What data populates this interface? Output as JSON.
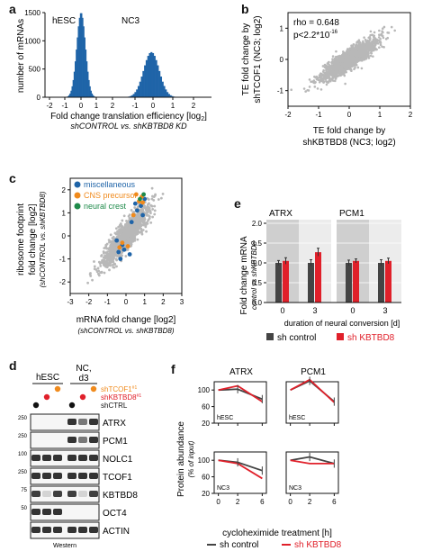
{
  "panels": {
    "a": {
      "label": "a",
      "chart_data": {
        "type": "histogram",
        "ylabel": "number of mRNAs",
        "xlabel_main": "Fold change translation efficiency [log",
        "xlabel_sub": "2",
        "xlabel_close": "]",
        "xlabel_italic": "shCONTROL vs. shKBTBD8 KD",
        "groups": [
          {
            "name": "hESC",
            "peak": 0.0,
            "max_count": 1500
          },
          {
            "name": "NC3",
            "peak": 0.0,
            "max_count": 800
          }
        ],
        "ytick_labels": [
          "0",
          "500",
          "1000",
          "1500"
        ],
        "xtick_labels": [
          "-2",
          "-1",
          "0",
          "1",
          "2",
          "-1",
          "0",
          "1",
          "2"
        ],
        "ylim": [
          0,
          1500
        ],
        "bar_color": "#1f64a8"
      }
    },
    "b": {
      "label": "b",
      "chart_data": {
        "type": "scatter",
        "annotation_rho": "rho = 0.648",
        "annotation_p": "p<2.2*10",
        "annotation_p_exp": "-16",
        "ylabel_lines": [
          "TE fold change by",
          "shTCOF1 (NC3; log2)"
        ],
        "xlabel_lines": [
          "TE fold change by",
          "shKBTBD8 (NC3; log2)"
        ],
        "xtick_labels": [
          "-2",
          "-1",
          "0",
          "1",
          "2"
        ],
        "ytick_labels": [
          "-1",
          "0",
          "1"
        ],
        "xlim": [
          -2,
          2
        ],
        "ylim": [
          -1.5,
          1.5
        ],
        "point_color": "#b8b8b8"
      }
    },
    "c": {
      "label": "c",
      "chart_data": {
        "type": "scatter",
        "legend": [
          {
            "name": "miscellaneous",
            "color": "#1f64a8"
          },
          {
            "name": "CNS precursor",
            "color": "#f08a1c"
          },
          {
            "name": "neural crest",
            "color": "#1e8a4a"
          }
        ],
        "ylabel_lines": [
          "ribosome footprint",
          "fold change [log2]",
          "(shCONTROL vs. shKBTBD8)"
        ],
        "xlabel_main": "mRNA fold change [log2]",
        "xlabel_italic": "(shCONTROL vs. shKBTBD8)",
        "xtick_labels": [
          "-3",
          "-2",
          "-1",
          "0",
          "1",
          "2",
          "3"
        ],
        "ytick_labels": [
          "-2",
          "-1",
          "0",
          "1",
          "2"
        ],
        "xlim": [
          -3,
          3
        ],
        "ylim": [
          -2.5,
          2.5
        ],
        "point_color": "#b8b8b8"
      }
    },
    "d": {
      "label": "d",
      "col_groups": [
        "hESC",
        "NC,",
        "d3"
      ],
      "legend_rows": [
        {
          "text": "shTCOF1",
          "sup": "#1",
          "color": "#f08a1c"
        },
        {
          "text": "shKBTBD8",
          "sup": "#1",
          "color": "#e0202a"
        },
        {
          "text": "shCTRL",
          "sup": "",
          "color": "#111111"
        }
      ],
      "blots": [
        {
          "name": "ATRX",
          "mw": "250"
        },
        {
          "name": "PCM1",
          "mw": "250"
        },
        {
          "name": "NOLC1",
          "mw": "100"
        },
        {
          "name": "TCOF1",
          "mw": "250"
        },
        {
          "name": "KBTBD8",
          "mw": "75"
        },
        {
          "name": "OCT4",
          "mw": "50"
        },
        {
          "name": "ACTIN",
          "mw": ""
        }
      ],
      "footer": "Western"
    },
    "e": {
      "label": "e",
      "chart_data": {
        "type": "bar",
        "groups": [
          "ATRX",
          "PCM1"
        ],
        "categories": [
          "0",
          "3"
        ],
        "series": [
          {
            "name": "sh control",
            "color": "#444444",
            "values": [
              [
                1.0,
                1.0
              ],
              [
                1.0,
                1.0
              ]
            ]
          },
          {
            "name": "sh KBTBD8",
            "color": "#e0202a",
            "values": [
              [
                1.05,
                1.27
              ],
              [
                1.05,
                1.05
              ]
            ]
          }
        ],
        "ylabel_main": "Fold change mRNA",
        "ylabel_italic": "control vs shKBTBD8",
        "xlabel": "duration of neural conversion [d]",
        "ytick_labels": [
          "0.0",
          "0.5",
          "1.0",
          "1.5",
          "2.0"
        ],
        "ylim": [
          0,
          2.0
        ]
      }
    },
    "f": {
      "label": "f",
      "chart_data": {
        "type": "line",
        "columns": [
          "ATRX",
          "PCM1"
        ],
        "rows": [
          "hESC",
          "NC3"
        ],
        "x": [
          0,
          2,
          6
        ],
        "xtick_labels": [
          "0",
          "2",
          "6"
        ],
        "ytick_labels": [
          "20",
          "60",
          "100"
        ],
        "ylim": [
          20,
          120
        ],
        "ylabel_main": "Protein abundance",
        "ylabel_italic": "(% of input)",
        "xlabel": "cycloheximide treatment [h]",
        "series": [
          {
            "name": "sh control",
            "color": "#444444"
          },
          {
            "name": "sh KBTBD8",
            "color": "#e0202a"
          }
        ],
        "panels_data": [
          {
            "col": "ATRX",
            "row": "hESC",
            "control": [
              100,
              102,
              78
            ],
            "kbtbd8": [
              100,
              110,
              72
            ]
          },
          {
            "col": "PCM1",
            "row": "hESC",
            "control": [
              100,
              122,
              72
            ],
            "kbtbd8": [
              100,
              125,
              70
            ]
          },
          {
            "col": "ATRX",
            "row": "NC3",
            "control": [
              100,
              95,
              75
            ],
            "kbtbd8": [
              100,
              92,
              56
            ]
          },
          {
            "col": "PCM1",
            "row": "NC3",
            "control": [
              100,
              108,
              92
            ],
            "kbtbd8": [
              100,
              92,
              92
            ]
          }
        ]
      }
    }
  }
}
